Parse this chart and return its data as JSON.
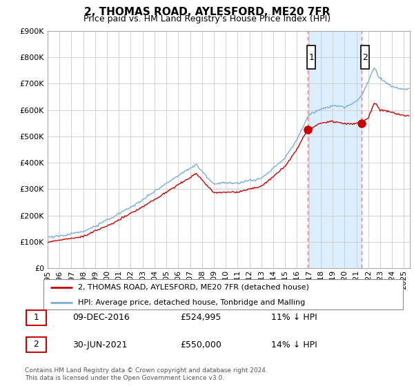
{
  "title": "2, THOMAS ROAD, AYLESFORD, ME20 7FR",
  "subtitle": "Price paid vs. HM Land Registry's House Price Index (HPI)",
  "hpi_label": "HPI: Average price, detached house, Tonbridge and Malling",
  "property_label": "2, THOMAS ROAD, AYLESFORD, ME20 7FR (detached house)",
  "sale1_date": "09-DEC-2016",
  "sale1_price": 524995,
  "sale1_pct": "11% ↓ HPI",
  "sale2_date": "30-JUN-2021",
  "sale2_price": 550000,
  "sale2_pct": "14% ↓ HPI",
  "footnote": "Contains HM Land Registry data © Crown copyright and database right 2024.\nThis data is licensed under the Open Government Licence v3.0.",
  "ylim": [
    0,
    900000
  ],
  "yticks": [
    0,
    100000,
    200000,
    300000,
    400000,
    500000,
    600000,
    700000,
    800000,
    900000
  ],
  "property_color": "#cc0000",
  "hpi_color": "#7aaddc",
  "sale_marker_color": "#cc0000",
  "vline_color": "#e08080",
  "shade_color": "#ddeeff",
  "background_color": "#ffffff",
  "grid_color": "#cccccc",
  "sale1_x": 2016.917,
  "sale2_x": 2021.417,
  "xlim_left": 1995.0,
  "xlim_right": 2025.5
}
